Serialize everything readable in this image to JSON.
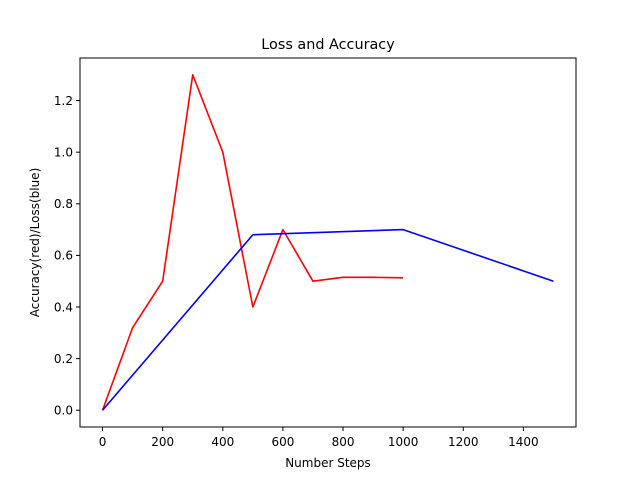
{
  "chart_data": {
    "type": "line",
    "title": "Loss and Accuracy",
    "xlabel": "Number Steps",
    "ylabel": "Accuracy(red)/Loss(blue)",
    "xlim": [
      -75,
      1575
    ],
    "ylim": [
      -0.065,
      1.365
    ],
    "xticks": [
      0,
      200,
      400,
      600,
      800,
      1000,
      1200,
      1400
    ],
    "xtick_labels": [
      "0",
      "200",
      "400",
      "600",
      "800",
      "1000",
      "1200",
      "1400"
    ],
    "yticks": [
      0.0,
      0.2,
      0.4,
      0.6,
      0.8,
      1.0,
      1.2
    ],
    "ytick_labels": [
      "0.0",
      "0.2",
      "0.4",
      "0.6",
      "0.8",
      "1.0",
      "1.2"
    ],
    "grid": false,
    "legend": "none",
    "series": [
      {
        "color": "#ff0000",
        "x": [
          0,
          100,
          200,
          300,
          400,
          500,
          600,
          700,
          800,
          900,
          1000
        ],
        "y": [
          0.0,
          0.32,
          0.5,
          1.3,
          1.0,
          0.4,
          0.7,
          0.5,
          0.515,
          0.515,
          0.513
        ]
      },
      {
        "color": "#0000ff",
        "x": [
          0,
          500,
          1000,
          1500
        ],
        "y": [
          0.0,
          0.68,
          0.7,
          0.5
        ]
      }
    ]
  }
}
